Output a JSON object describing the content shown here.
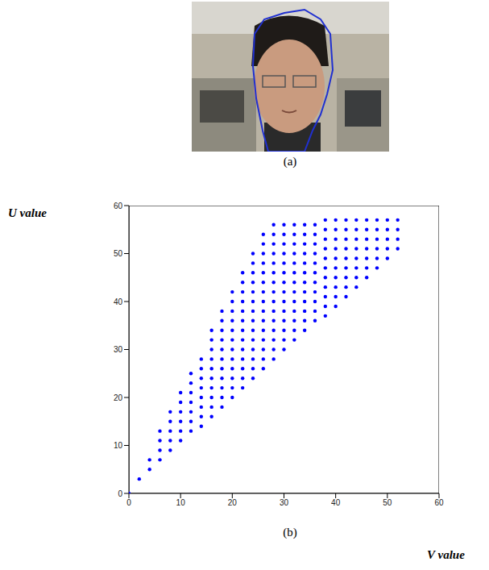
{
  "panel_a": {
    "caption": "(a)"
  },
  "chart_data": {
    "type": "scatter",
    "caption": "(b)",
    "x_label": "V value",
    "y_label": "U value",
    "xlim": [
      0,
      60
    ],
    "ylim": [
      0,
      60
    ],
    "xticks": [
      0,
      10,
      20,
      30,
      40,
      50,
      60
    ],
    "yticks": [
      0,
      10,
      20,
      30,
      40,
      50,
      60
    ],
    "color": "#0000ff",
    "marker": "circle",
    "x": [
      0,
      2,
      4,
      4,
      6,
      6,
      6,
      6,
      8,
      8,
      8,
      8,
      8,
      10,
      10,
      10,
      10,
      10,
      10,
      12,
      12,
      12,
      12,
      12,
      12,
      12,
      14,
      14,
      14,
      14,
      14,
      14,
      14,
      14,
      16,
      16,
      16,
      16,
      16,
      16,
      16,
      16,
      16,
      16,
      18,
      18,
      18,
      18,
      18,
      18,
      18,
      18,
      18,
      18,
      18,
      20,
      20,
      20,
      20,
      20,
      20,
      20,
      20,
      20,
      20,
      20,
      20,
      22,
      22,
      22,
      22,
      22,
      22,
      22,
      22,
      22,
      22,
      22,
      22,
      22,
      24,
      24,
      24,
      24,
      24,
      24,
      24,
      24,
      24,
      24,
      24,
      24,
      24,
      24,
      26,
      26,
      26,
      26,
      26,
      26,
      26,
      26,
      26,
      26,
      26,
      26,
      26,
      26,
      26,
      28,
      28,
      28,
      28,
      28,
      28,
      28,
      28,
      28,
      28,
      28,
      28,
      28,
      28,
      28,
      30,
      30,
      30,
      30,
      30,
      30,
      30,
      30,
      30,
      30,
      30,
      30,
      30,
      30,
      32,
      32,
      32,
      32,
      32,
      32,
      32,
      32,
      32,
      32,
      32,
      32,
      32,
      34,
      34,
      34,
      34,
      34,
      34,
      34,
      34,
      34,
      34,
      34,
      34,
      36,
      36,
      36,
      36,
      36,
      36,
      36,
      36,
      36,
      36,
      36,
      38,
      38,
      38,
      38,
      38,
      38,
      38,
      38,
      38,
      38,
      38,
      40,
      40,
      40,
      40,
      40,
      40,
      40,
      40,
      40,
      40,
      42,
      42,
      42,
      42,
      42,
      42,
      42,
      42,
      42,
      44,
      44,
      44,
      44,
      44,
      44,
      44,
      44,
      46,
      46,
      46,
      46,
      46,
      46,
      46,
      48,
      48,
      48,
      48,
      48,
      48,
      50,
      50,
      50,
      50,
      50,
      52,
      52,
      52,
      52
    ],
    "values": [
      0,
      3,
      5,
      7,
      7,
      9,
      11,
      13,
      9,
      11,
      13,
      15,
      17,
      11,
      13,
      15,
      17,
      19,
      21,
      13,
      15,
      17,
      19,
      21,
      23,
      25,
      14,
      16,
      18,
      20,
      22,
      24,
      26,
      28,
      16,
      18,
      20,
      22,
      24,
      26,
      28,
      30,
      32,
      34,
      18,
      20,
      22,
      24,
      26,
      28,
      30,
      32,
      34,
      36,
      38,
      20,
      22,
      24,
      26,
      28,
      30,
      32,
      34,
      36,
      38,
      40,
      42,
      22,
      24,
      26,
      28,
      30,
      32,
      34,
      36,
      38,
      40,
      42,
      44,
      46,
      24,
      26,
      28,
      30,
      32,
      34,
      36,
      38,
      40,
      42,
      44,
      46,
      48,
      50,
      26,
      28,
      30,
      32,
      34,
      36,
      38,
      40,
      42,
      44,
      46,
      48,
      50,
      52,
      54,
      28,
      30,
      32,
      34,
      36,
      38,
      40,
      42,
      44,
      46,
      48,
      50,
      52,
      54,
      56,
      30,
      32,
      34,
      36,
      38,
      40,
      42,
      44,
      46,
      48,
      50,
      52,
      54,
      56,
      32,
      34,
      36,
      38,
      40,
      42,
      44,
      46,
      48,
      50,
      52,
      54,
      56,
      34,
      36,
      38,
      40,
      42,
      44,
      46,
      48,
      50,
      52,
      54,
      56,
      36,
      38,
      40,
      42,
      44,
      46,
      48,
      50,
      52,
      54,
      56,
      37,
      39,
      41,
      43,
      45,
      47,
      49,
      51,
      53,
      55,
      57,
      39,
      41,
      43,
      45,
      47,
      49,
      51,
      53,
      55,
      57,
      41,
      43,
      45,
      47,
      49,
      51,
      53,
      55,
      57,
      43,
      45,
      47,
      49,
      51,
      53,
      55,
      57,
      45,
      47,
      49,
      51,
      53,
      55,
      57,
      47,
      49,
      51,
      53,
      55,
      57,
      49,
      51,
      53,
      55,
      57,
      51,
      53,
      55,
      57
    ]
  }
}
